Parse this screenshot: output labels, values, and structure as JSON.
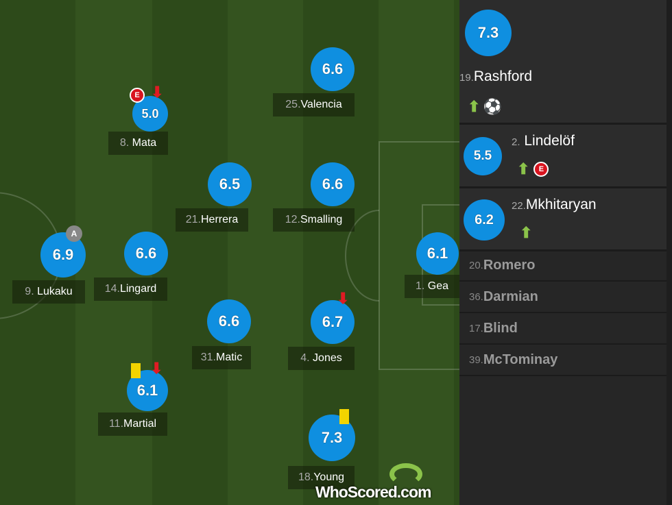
{
  "pitch_players": [
    {
      "number": "25.",
      "name": "Valencia",
      "rating": "6.6"
    },
    {
      "number": "8.",
      "name": "Mata",
      "rating": "5.0",
      "events": [
        "error",
        "subbed-off"
      ]
    },
    {
      "number": "21.",
      "name": "Herrera",
      "rating": "6.5"
    },
    {
      "number": "12.",
      "name": "Smalling",
      "rating": "6.6"
    },
    {
      "number": "9.",
      "name": "Lukaku",
      "rating": "6.9",
      "captain": "A"
    },
    {
      "number": "14.",
      "name": "Lingard",
      "rating": "6.6"
    },
    {
      "number": "1.",
      "name": "Gea",
      "rating": "6.1"
    },
    {
      "number": "31.",
      "name": "Matic",
      "rating": "6.6"
    },
    {
      "number": "4.",
      "name": "Jones",
      "rating": "6.7",
      "events": [
        "subbed-off"
      ]
    },
    {
      "number": "11.",
      "name": "Martial",
      "rating": "6.1",
      "events": [
        "yellow-card",
        "subbed-off"
      ]
    },
    {
      "number": "18.",
      "name": "Young",
      "rating": "7.3",
      "events": [
        "yellow-card"
      ]
    }
  ],
  "substitutes": [
    {
      "number": "19.",
      "name": "Rashford",
      "rating": "7.3",
      "events": [
        "subbed-on",
        "goal"
      ]
    },
    {
      "number": "2.",
      "name": "Lindelöf",
      "rating": "5.5",
      "events": [
        "subbed-on",
        "error"
      ]
    },
    {
      "number": "22.",
      "name": "Mkhitaryan",
      "rating": "6.2",
      "events": [
        "subbed-on"
      ]
    }
  ],
  "bench": [
    {
      "number": "20.",
      "name": "Romero"
    },
    {
      "number": "36.",
      "name": "Darmian"
    },
    {
      "number": "17.",
      "name": "Blind"
    },
    {
      "number": "39.",
      "name": "McTominay"
    }
  ],
  "badges": {
    "error": "E",
    "captain": "A"
  },
  "logo": "WhoScored.com",
  "colors": {
    "rating": "#0f8fe0",
    "pitch": "#34531f",
    "error": "#d8141f",
    "sub_on": "#8bc34a",
    "sub_off": "#e01b24",
    "yellow": "#f3d400"
  }
}
